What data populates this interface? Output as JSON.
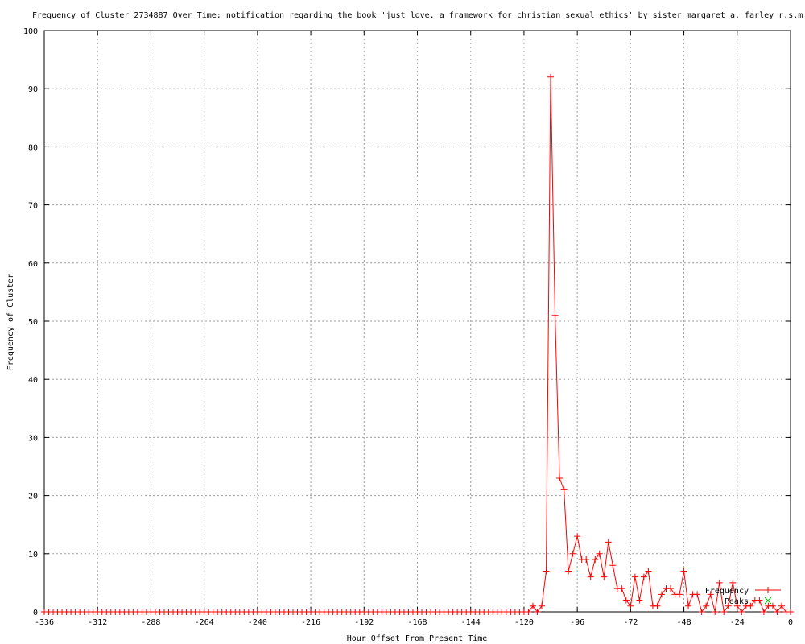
{
  "chart_data": {
    "type": "line",
    "title": "Frequency of Cluster 2734887 Over Time: notification regarding the book 'just love. a framework for christian sexual ethics' by sister margaret a. farley r.s.m",
    "xlabel": "Hour Offset From Present Time",
    "ylabel": "Frequency of Cluster",
    "xlim": [
      -336,
      0
    ],
    "ylim": [
      0,
      100
    ],
    "xticks": [
      -336,
      -312,
      -288,
      -264,
      -240,
      -216,
      -192,
      -168,
      -144,
      -120,
      -96,
      -72,
      -48,
      -24,
      0
    ],
    "yticks": [
      0,
      10,
      20,
      30,
      40,
      50,
      60,
      70,
      80,
      90,
      100
    ],
    "grid": true,
    "legend_position": "bottom-right",
    "series": [
      {
        "name": "Frequency",
        "color": "#ff0000",
        "marker": "plus",
        "x_step": 2,
        "x_start": -336,
        "nonzero_points": [
          [
            -116,
            1
          ],
          [
            -114,
            0
          ],
          [
            -112,
            1
          ],
          [
            -110,
            7
          ],
          [
            -108,
            92
          ],
          [
            -106,
            51
          ],
          [
            -104,
            23
          ],
          [
            -102,
            21
          ],
          [
            -100,
            7
          ],
          [
            -98,
            10
          ],
          [
            -96,
            13
          ],
          [
            -94,
            9
          ],
          [
            -92,
            9
          ],
          [
            -90,
            6
          ],
          [
            -88,
            9
          ],
          [
            -86,
            10
          ],
          [
            -84,
            6
          ],
          [
            -82,
            12
          ],
          [
            -80,
            8
          ],
          [
            -78,
            4
          ],
          [
            -76,
            4
          ],
          [
            -74,
            2
          ],
          [
            -72,
            1
          ],
          [
            -70,
            6
          ],
          [
            -68,
            2
          ],
          [
            -66,
            6
          ],
          [
            -64,
            7
          ],
          [
            -62,
            1
          ],
          [
            -60,
            1
          ],
          [
            -58,
            3
          ],
          [
            -56,
            4
          ],
          [
            -54,
            4
          ],
          [
            -52,
            3
          ],
          [
            -50,
            3
          ],
          [
            -48,
            7
          ],
          [
            -46,
            1
          ],
          [
            -44,
            3
          ],
          [
            -42,
            3
          ],
          [
            -40,
            0
          ],
          [
            -38,
            1
          ],
          [
            -36,
            3
          ],
          [
            -34,
            0
          ],
          [
            -32,
            5
          ],
          [
            -30,
            0
          ],
          [
            -28,
            1
          ],
          [
            -26,
            5
          ],
          [
            -24,
            1
          ],
          [
            -22,
            0
          ],
          [
            -20,
            1
          ],
          [
            -18,
            1
          ],
          [
            -16,
            2
          ],
          [
            -14,
            2
          ],
          [
            -12,
            0
          ],
          [
            -10,
            1
          ],
          [
            -8,
            1
          ],
          [
            -6,
            0
          ],
          [
            -4,
            1
          ],
          [
            -2,
            0
          ],
          [
            0,
            0
          ]
        ]
      },
      {
        "name": "Peaks",
        "color": "#00c000",
        "marker": "x",
        "points": []
      }
    ]
  }
}
